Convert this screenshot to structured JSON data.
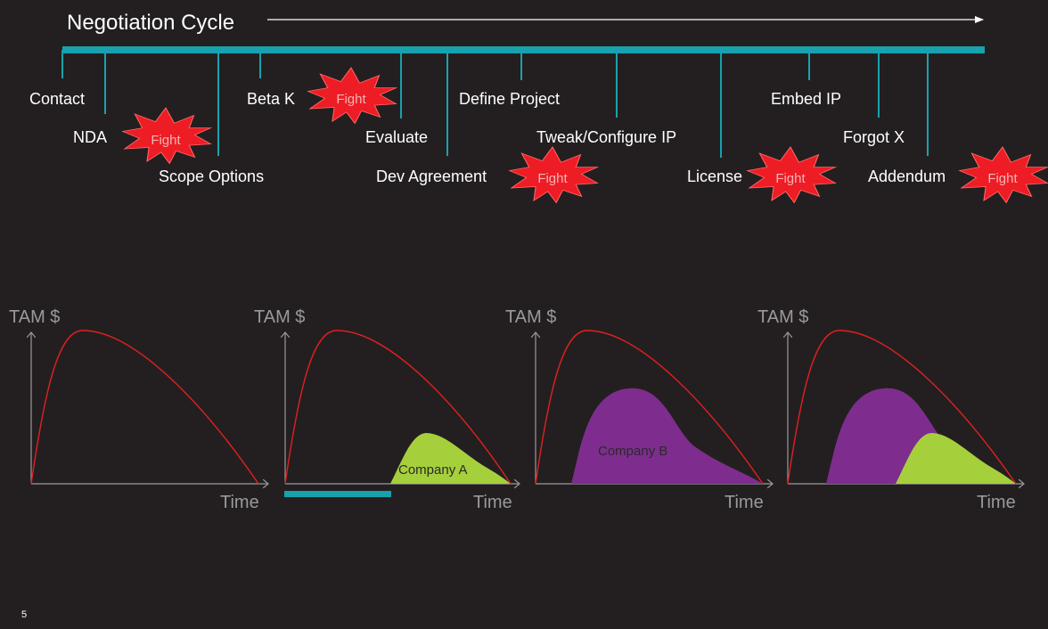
{
  "title": "Negotiation Cycle",
  "page_number": "5",
  "fight_label": "Fight",
  "steps": [
    {
      "key": "contact",
      "label": "Contact"
    },
    {
      "key": "nda",
      "label": "NDA"
    },
    {
      "key": "scope",
      "label": "Scope Options"
    },
    {
      "key": "betak",
      "label": "Beta K"
    },
    {
      "key": "evaluate",
      "label": "Evaluate"
    },
    {
      "key": "dev",
      "label": "Dev Agreement"
    },
    {
      "key": "define",
      "label": "Define Project"
    },
    {
      "key": "tweak",
      "label": "Tweak/Configure IP"
    },
    {
      "key": "license",
      "label": "License"
    },
    {
      "key": "embed",
      "label": "Embed IP"
    },
    {
      "key": "forgot",
      "label": "Forgot X"
    },
    {
      "key": "addendum",
      "label": "Addendum"
    }
  ],
  "charts": [
    {
      "ylabel": "TAM $",
      "xlabel": "Time"
    },
    {
      "ylabel": "TAM $",
      "xlabel": "Time",
      "shape_label": "Company A"
    },
    {
      "ylabel": "TAM $",
      "xlabel": "Time",
      "shape_label": "Company B"
    },
    {
      "ylabel": "TAM $",
      "xlabel": "Time"
    }
  ],
  "colors": {
    "background": "#231f20",
    "timeline": "#17a2ad",
    "market_curve": "#e02020",
    "company_a": "#a6cf3c",
    "company_b": "#7e2d8e",
    "fight_burst": "#ee1c24",
    "axis": "#9a9a9a"
  }
}
